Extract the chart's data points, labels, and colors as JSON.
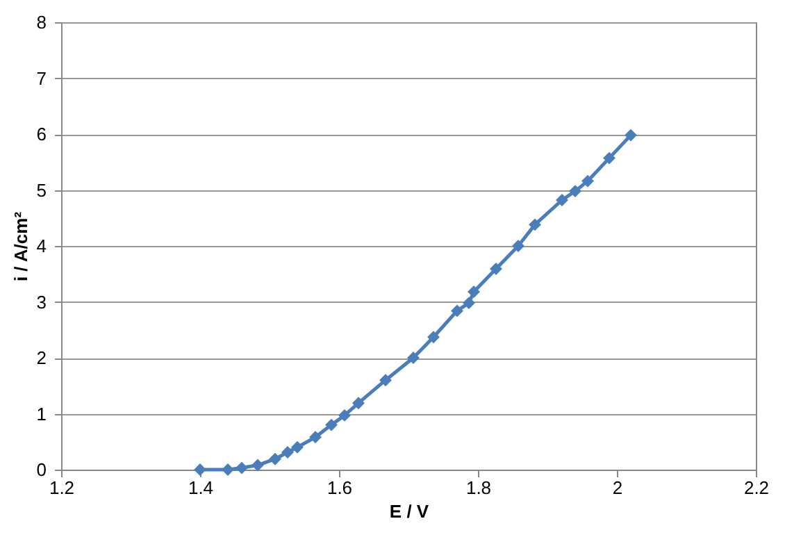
{
  "chart_data": {
    "type": "line",
    "xlabel": "E / V",
    "ylabel": "i / A/cm²",
    "x": [
      1.4,
      1.44,
      1.46,
      1.483,
      1.508,
      1.526,
      1.54,
      1.566,
      1.589,
      1.608,
      1.628,
      1.667,
      1.707,
      1.736,
      1.77,
      1.787,
      1.794,
      1.826,
      1.858,
      1.882,
      1.921,
      1.94,
      1.958,
      1.989,
      2.02
    ],
    "series": [
      {
        "color": "#4a7ebb",
        "values": [
          0,
          0,
          0.03,
          0.08,
          0.19,
          0.31,
          0.4,
          0.58,
          0.8,
          0.97,
          1.19,
          1.6,
          2.0,
          2.37,
          2.84,
          2.98,
          3.18,
          3.59,
          4.0,
          4.38,
          4.82,
          4.98,
          5.16,
          5.57,
          5.98
        ]
      }
    ],
    "xlim": [
      1.2,
      2.2
    ],
    "xticks": [
      1.2,
      1.4,
      1.6,
      1.8,
      2,
      2.2
    ],
    "ylim": [
      0,
      8
    ],
    "yticks": [
      0,
      1,
      2,
      3,
      4,
      5,
      6,
      7,
      8
    ],
    "grid": "y",
    "marker": "diamond",
    "line_style": "solid",
    "legend": false
  }
}
